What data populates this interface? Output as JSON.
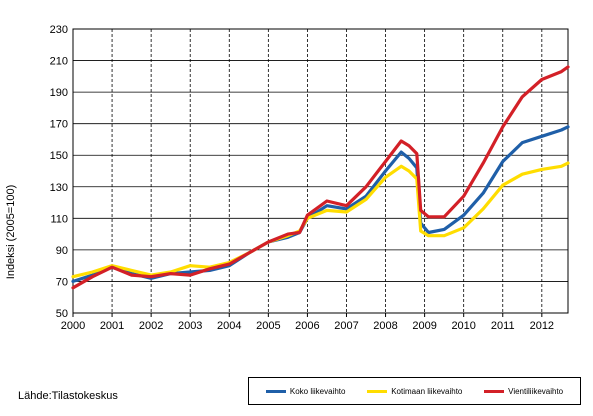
{
  "source_text": "Lähde:Tilastokeskus",
  "chart_data": {
    "type": "line",
    "title": "",
    "xlabel": "",
    "ylabel": "Indeksi (2005=100)",
    "ylim": [
      50,
      230
    ],
    "xlim": [
      2000,
      2012.67
    ],
    "yticks": [
      50,
      70,
      90,
      110,
      130,
      150,
      170,
      190,
      210,
      230
    ],
    "xtick_labels": [
      "2000",
      "2001",
      "2002",
      "2003",
      "2004",
      "2005",
      "2006",
      "2007",
      "2008",
      "2009",
      "2010",
      "2011",
      "2012"
    ],
    "grid": "vertical dashed at years, horizontal solid",
    "legend_position": "bottom-right",
    "series": [
      {
        "name": "Koko liikevaihto",
        "color": "#1f5fa8",
        "points": [
          [
            2000,
            70
          ],
          [
            2000.5,
            74
          ],
          [
            2001,
            79
          ],
          [
            2001.5,
            75
          ],
          [
            2002,
            72
          ],
          [
            2002.5,
            75
          ],
          [
            2003,
            76
          ],
          [
            2003.5,
            77
          ],
          [
            2004,
            80
          ],
          [
            2004.5,
            88
          ],
          [
            2005,
            95
          ],
          [
            2005.5,
            98
          ],
          [
            2005.8,
            101
          ],
          [
            2006,
            110
          ],
          [
            2006.5,
            118
          ],
          [
            2007,
            116
          ],
          [
            2007.5,
            124
          ],
          [
            2008,
            140
          ],
          [
            2008.4,
            152
          ],
          [
            2008.6,
            148
          ],
          [
            2008.8,
            142
          ],
          [
            2008.9,
            107
          ],
          [
            2009.1,
            101
          ],
          [
            2009.5,
            103
          ],
          [
            2010,
            112
          ],
          [
            2010.5,
            126
          ],
          [
            2011,
            146
          ],
          [
            2011.5,
            158
          ],
          [
            2012,
            162
          ],
          [
            2012.5,
            166
          ],
          [
            2012.67,
            168
          ]
        ]
      },
      {
        "name": "Kotimaan liikevaihto",
        "color": "#ffdd00",
        "points": [
          [
            2000,
            73
          ],
          [
            2000.5,
            76
          ],
          [
            2001,
            80
          ],
          [
            2001.5,
            77
          ],
          [
            2002,
            74
          ],
          [
            2002.5,
            76
          ],
          [
            2003,
            80
          ],
          [
            2003.5,
            79
          ],
          [
            2004,
            82
          ],
          [
            2004.5,
            88
          ],
          [
            2005,
            95
          ],
          [
            2005.5,
            99
          ],
          [
            2005.8,
            102
          ],
          [
            2006,
            110
          ],
          [
            2006.5,
            115
          ],
          [
            2007,
            114
          ],
          [
            2007.5,
            122
          ],
          [
            2008,
            136
          ],
          [
            2008.4,
            143
          ],
          [
            2008.6,
            140
          ],
          [
            2008.8,
            135
          ],
          [
            2008.9,
            102
          ],
          [
            2009.1,
            99
          ],
          [
            2009.5,
            99
          ],
          [
            2010,
            104
          ],
          [
            2010.5,
            116
          ],
          [
            2011,
            131
          ],
          [
            2011.5,
            138
          ],
          [
            2012,
            141
          ],
          [
            2012.5,
            143
          ],
          [
            2012.67,
            145
          ]
        ]
      },
      {
        "name": "Vientiliikevaihto",
        "color": "#d32027",
        "points": [
          [
            2000,
            66
          ],
          [
            2000.5,
            73
          ],
          [
            2001,
            79
          ],
          [
            2001.5,
            74
          ],
          [
            2002,
            73
          ],
          [
            2002.5,
            75
          ],
          [
            2003,
            74
          ],
          [
            2003.5,
            78
          ],
          [
            2004,
            81
          ],
          [
            2004.5,
            88
          ],
          [
            2005,
            95
          ],
          [
            2005.5,
            100
          ],
          [
            2005.8,
            101
          ],
          [
            2006,
            112
          ],
          [
            2006.5,
            121
          ],
          [
            2007,
            118
          ],
          [
            2007.5,
            130
          ],
          [
            2008,
            146
          ],
          [
            2008.4,
            159
          ],
          [
            2008.6,
            156
          ],
          [
            2008.8,
            151
          ],
          [
            2008.9,
            115
          ],
          [
            2009.1,
            111
          ],
          [
            2009.5,
            111
          ],
          [
            2010,
            124
          ],
          [
            2010.5,
            145
          ],
          [
            2011,
            168
          ],
          [
            2011.5,
            187
          ],
          [
            2012,
            198
          ],
          [
            2012.5,
            203
          ],
          [
            2012.67,
            206
          ]
        ]
      }
    ]
  }
}
